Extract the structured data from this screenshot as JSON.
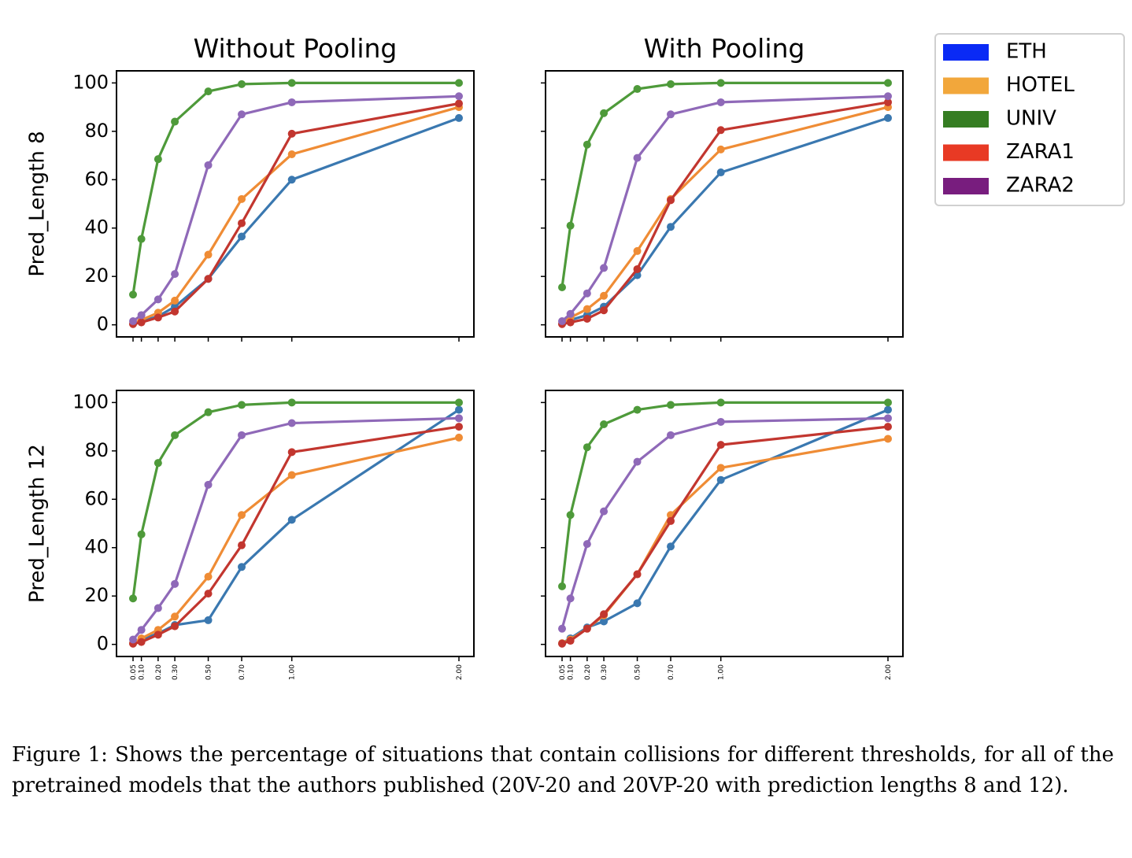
{
  "chart_data": [
    {
      "type": "line",
      "title": "Without Pooling",
      "ylabel": "Pred_Length 8",
      "x": [
        0.05,
        0.1,
        0.2,
        0.3,
        0.5,
        0.7,
        1.0,
        2.0
      ],
      "xticklabels": [
        "0.05",
        "0.10",
        "0.20",
        "0.30",
        "0.50",
        "0.70",
        "1.00",
        "2.00"
      ],
      "ylim": [
        -5,
        105
      ],
      "yticks": [
        0,
        20,
        40,
        60,
        80,
        100
      ],
      "series": [
        {
          "name": "ETH",
          "color": "#3a78b0",
          "values": [
            0.5,
            1.5,
            3.5,
            7.5,
            19,
            36.5,
            60,
            85.5
          ]
        },
        {
          "name": "HOTEL",
          "color": "#ef8c35",
          "values": [
            0.5,
            2.0,
            5.0,
            10,
            29,
            52,
            70.5,
            90
          ]
        },
        {
          "name": "UNIV",
          "color": "#4e9a3a",
          "values": [
            12.5,
            35.5,
            68.5,
            84,
            96.5,
            99.5,
            100,
            100
          ]
        },
        {
          "name": "ZARA1",
          "color": "#c2362f",
          "values": [
            0.3,
            1.0,
            3.0,
            5.5,
            19,
            42,
            79,
            91.5
          ]
        },
        {
          "name": "ZARA2",
          "color": "#8f69b8",
          "values": [
            1.5,
            4.0,
            10.5,
            21,
            66,
            87,
            92,
            94.5
          ]
        }
      ]
    },
    {
      "type": "line",
      "title": "With Pooling",
      "ylabel": "",
      "x": [
        0.05,
        0.1,
        0.2,
        0.3,
        0.5,
        0.7,
        1.0,
        2.0
      ],
      "xticklabels": [
        "0.05",
        "0.10",
        "0.20",
        "0.30",
        "0.50",
        "0.70",
        "1.00",
        "2.00"
      ],
      "ylim": [
        -5,
        105
      ],
      "yticks": [
        0,
        20,
        40,
        60,
        80,
        100
      ],
      "series": [
        {
          "name": "ETH",
          "color": "#3a78b0",
          "values": [
            0.5,
            2.0,
            4.0,
            7.5,
            20.5,
            40.5,
            63,
            85.5
          ]
        },
        {
          "name": "HOTEL",
          "color": "#ef8c35",
          "values": [
            0.5,
            3.0,
            6.5,
            12,
            30.5,
            52,
            72.5,
            90
          ]
        },
        {
          "name": "UNIV",
          "color": "#4e9a3a",
          "values": [
            15.5,
            41,
            74.5,
            87.5,
            97.5,
            99.5,
            100,
            100
          ]
        },
        {
          "name": "ZARA1",
          "color": "#c2362f",
          "values": [
            0.3,
            1.0,
            2.5,
            6.0,
            23,
            51.5,
            80.5,
            92
          ]
        },
        {
          "name": "ZARA2",
          "color": "#8f69b8",
          "values": [
            1.5,
            4.5,
            13,
            23.5,
            69,
            87,
            92,
            94.5
          ]
        }
      ]
    },
    {
      "type": "line",
      "title": "",
      "ylabel": "Pred_Length 12",
      "x": [
        0.05,
        0.1,
        0.2,
        0.3,
        0.5,
        0.7,
        1.0,
        2.0
      ],
      "xticklabels": [
        "0.05",
        "0.10",
        "0.20",
        "0.30",
        "0.50",
        "0.70",
        "1.00",
        "2.00"
      ],
      "ylim": [
        -5,
        105
      ],
      "yticks": [
        0,
        20,
        40,
        60,
        80,
        100
      ],
      "series": [
        {
          "name": "ETH",
          "color": "#3a78b0",
          "values": [
            0.5,
            2.0,
            4.5,
            8.0,
            10,
            32,
            51.5,
            97
          ]
        },
        {
          "name": "HOTEL",
          "color": "#ef8c35",
          "values": [
            0.5,
            2.5,
            6.0,
            11.5,
            28,
            53.5,
            70,
            85.5
          ]
        },
        {
          "name": "UNIV",
          "color": "#4e9a3a",
          "values": [
            19,
            45.5,
            75,
            86.5,
            96,
            99,
            100,
            100
          ]
        },
        {
          "name": "ZARA1",
          "color": "#c2362f",
          "values": [
            0.3,
            1.0,
            4.0,
            7.5,
            21,
            41,
            79.5,
            90
          ]
        },
        {
          "name": "ZARA2",
          "color": "#8f69b8",
          "values": [
            2.0,
            6.0,
            15,
            25,
            66,
            86.5,
            91.5,
            93.5
          ]
        }
      ]
    },
    {
      "type": "line",
      "title": "",
      "ylabel": "",
      "x": [
        0.05,
        0.1,
        0.2,
        0.3,
        0.5,
        0.7,
        1.0,
        2.0
      ],
      "xticklabels": [
        "0.05",
        "0.10",
        "0.20",
        "0.30",
        "0.50",
        "0.70",
        "1.00",
        "2.00"
      ],
      "ylim": [
        -5,
        105
      ],
      "yticks": [
        0,
        20,
        40,
        60,
        80,
        100
      ],
      "series": [
        {
          "name": "ETH",
          "color": "#3a78b0",
          "values": [
            0.5,
            2.5,
            7.0,
            9.5,
            17,
            40.5,
            68,
            97
          ]
        },
        {
          "name": "HOTEL",
          "color": "#ef8c35",
          "values": [
            0.5,
            2.0,
            6.5,
            12,
            29,
            53.5,
            73,
            85
          ]
        },
        {
          "name": "UNIV",
          "color": "#4e9a3a",
          "values": [
            24,
            53.5,
            81.5,
            91,
            97,
            99,
            100,
            100
          ]
        },
        {
          "name": "ZARA1",
          "color": "#c2362f",
          "values": [
            0.3,
            1.5,
            6.5,
            12.5,
            29,
            51,
            82.5,
            90
          ]
        },
        {
          "name": "ZARA2",
          "color": "#8f69b8",
          "values": [
            6.5,
            19,
            41.5,
            55,
            75.5,
            86.5,
            92,
            93.5
          ]
        }
      ]
    }
  ],
  "legend": {
    "placement": "upper right, outside",
    "entries": [
      {
        "label": "ETH",
        "color": "#0a2af5"
      },
      {
        "label": "HOTEL",
        "color": "#f2a73b"
      },
      {
        "label": "UNIV",
        "color": "#357d22"
      },
      {
        "label": "ZARA1",
        "color": "#e83a24"
      },
      {
        "label": "ZARA2",
        "color": "#781d7e"
      }
    ]
  },
  "caption": "Figure 1: Shows the percentage of situations that contain collisions for different thresholds, for all of the pretrained models that the authors published (20V-20 and 20VP-20 with prediction lengths 8 and 12)."
}
